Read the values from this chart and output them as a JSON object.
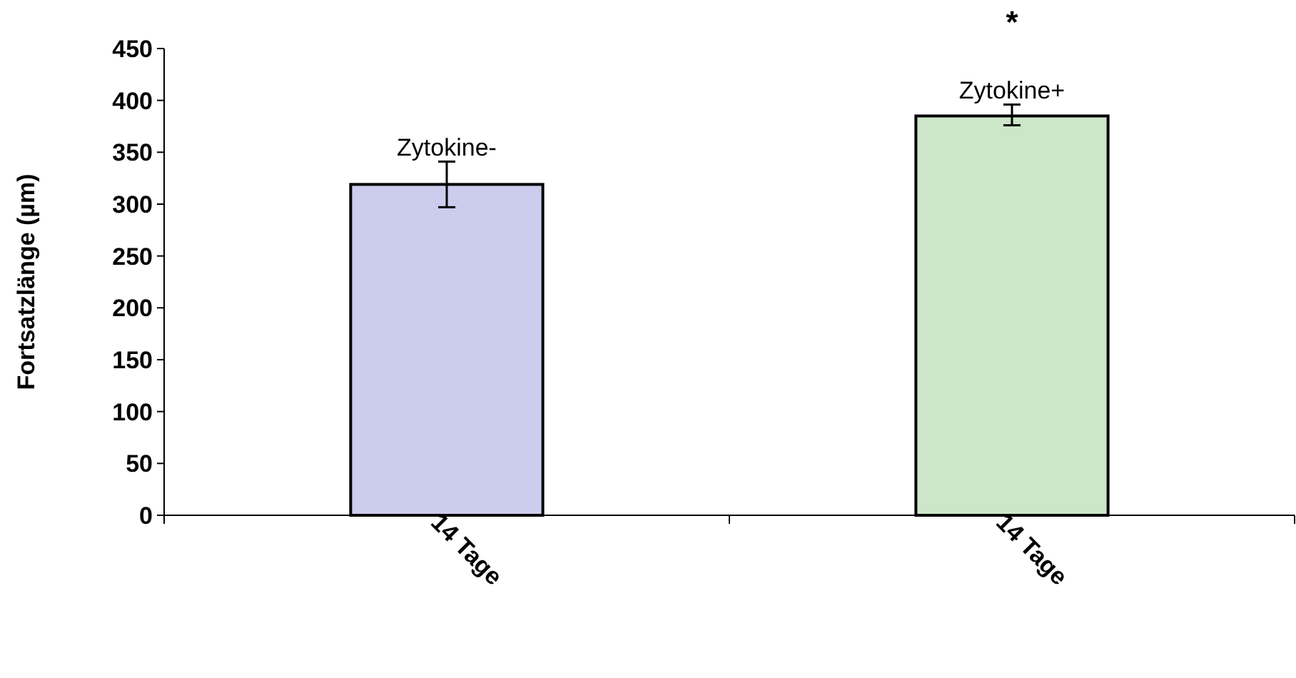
{
  "chart_data": {
    "type": "bar",
    "ylabel": "Fortsatzlänge (µm)",
    "categories": [
      "14 Tage",
      "14 Tage"
    ],
    "series": [
      {
        "name": "Zytokine-",
        "color": "#ccccee",
        "values": [
          319,
          null
        ],
        "errors": [
          [
            297,
            341
          ],
          null
        ]
      },
      {
        "name": "Zytokine+",
        "color": "#cce6c8",
        "values": [
          null,
          385
        ],
        "errors": [
          null,
          [
            376,
            396
          ]
        ]
      }
    ],
    "ylim": [
      0,
      450
    ],
    "yticks": [
      0,
      50,
      100,
      150,
      200,
      250,
      300,
      350,
      400,
      450
    ],
    "grid": false,
    "annotations": [
      "*"
    ]
  }
}
